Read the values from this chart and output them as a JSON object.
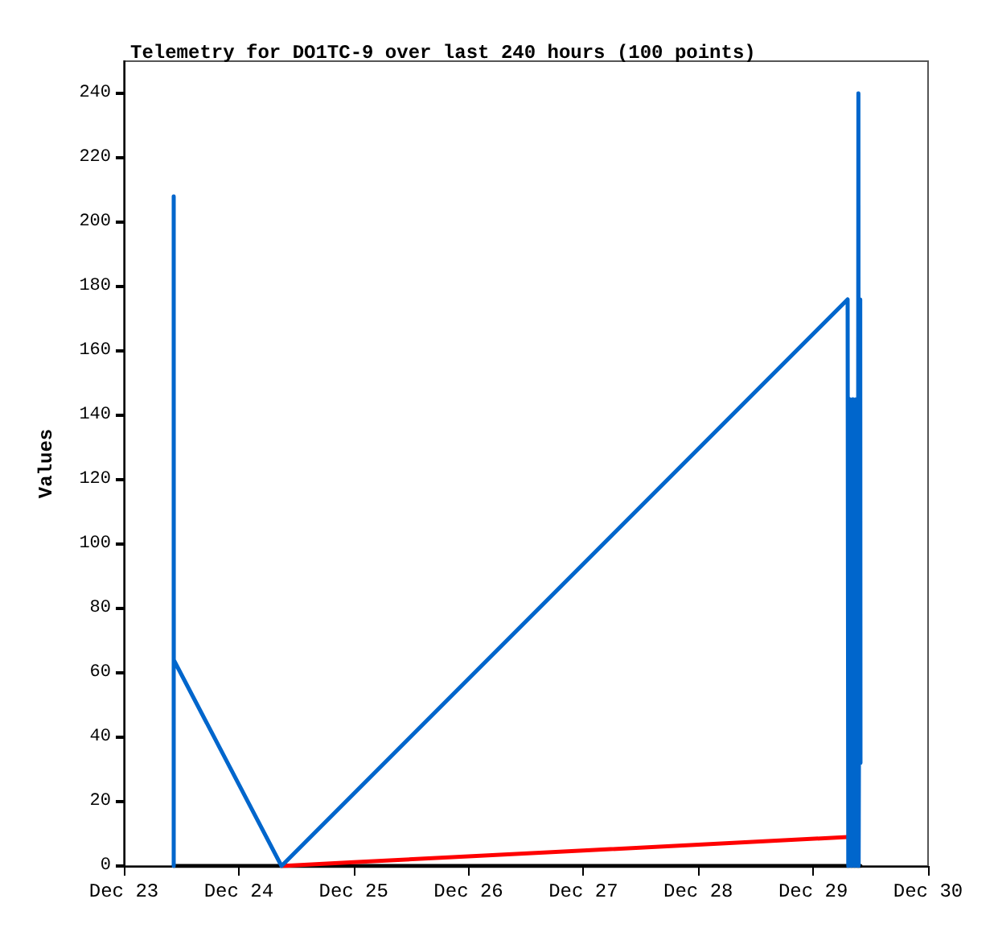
{
  "chart_data": {
    "type": "line",
    "title": "Telemetry for DO1TC-9 over last 240 hours (100 points)",
    "ylabel": "Values",
    "xlim": [
      "--12-23",
      "--12-30"
    ],
    "xticks": [
      {
        "value": "--12-23",
        "label": "Dec 23"
      },
      {
        "value": "--12-24",
        "label": "Dec 24"
      },
      {
        "value": "--12-25",
        "label": "Dec 25"
      },
      {
        "value": "--12-26",
        "label": "Dec 26"
      },
      {
        "value": "--12-27",
        "label": "Dec 27"
      },
      {
        "value": "--12-28",
        "label": "Dec 28"
      },
      {
        "value": "--12-29",
        "label": "Dec 29"
      },
      {
        "value": "--12-30",
        "label": "Dec 30"
      }
    ],
    "ylim": [
      0,
      250
    ],
    "yticks": [
      0,
      20,
      40,
      60,
      80,
      100,
      120,
      140,
      160,
      180,
      200,
      220,
      240
    ],
    "grid": false,
    "marker": "none",
    "line_style": "solid",
    "series": [
      {
        "color": "#000000",
        "x": [
          "--12-23T10:25",
          "--12-29T09:53"
        ],
        "values": [
          0,
          0
        ]
      },
      {
        "color": "#ff0000",
        "x": [
          "--12-24T08:56",
          "--12-25T00:00",
          "--12-26T00:00",
          "--12-27T00:00",
          "--12-28T00:00",
          "--12-29T07:12"
        ],
        "values": [
          0,
          1.2,
          3,
          4.8,
          6.6,
          9
        ]
      },
      {
        "color": "#0066cc",
        "x": [
          "--12-23T10:25",
          "--12-23T10:25",
          "--12-23T10:26",
          "--12-24T08:56",
          "--12-29T07:12",
          "--12-29T07:20",
          "--12-29T07:40",
          "--12-29T08:00",
          "--12-29T08:20",
          "--12-29T08:40",
          "--12-29T09:00",
          "--12-29T09:20",
          "--12-29T09:27",
          "--12-29T09:30",
          "--12-29T09:50",
          "--12-29T09:53"
        ],
        "values": [
          0,
          208,
          64,
          0,
          176,
          0,
          145,
          0,
          145,
          0,
          145,
          0,
          240,
          0,
          176,
          32
        ]
      }
    ]
  }
}
